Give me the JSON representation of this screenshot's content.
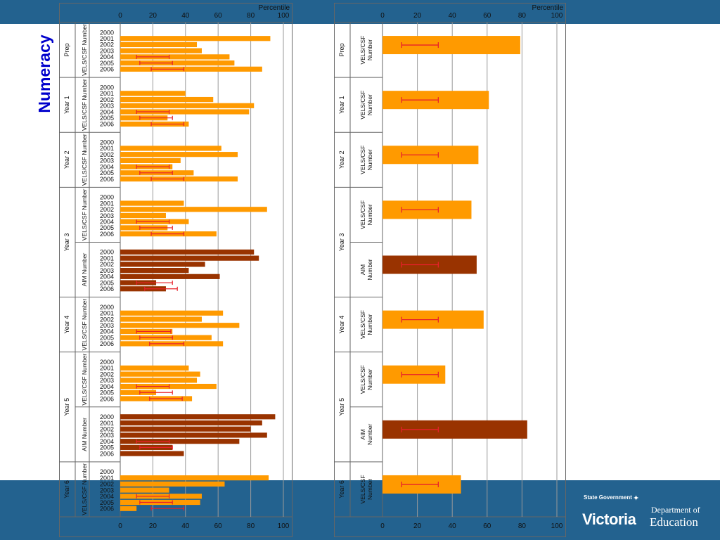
{
  "title": "Numeracy",
  "logo": {
    "state_government": "State Government",
    "victoria": "Victoria",
    "department_of": "Department of",
    "education": "Education"
  },
  "colors": {
    "vels": "#ff9a00",
    "aim": "#993300",
    "error_bar": "#e8202a",
    "band": "#23628f",
    "title": "#0000cc"
  },
  "chart_data": [
    {
      "type": "bar",
      "orientation": "horizontal",
      "xlabel": "Percentile",
      "xlim": [
        0,
        100
      ],
      "xticks": [
        0,
        20,
        40,
        60,
        80,
        100
      ],
      "grid": true,
      "groups": [
        {
          "year": "Prep",
          "measure": "VELS/CSF Number",
          "series": "vels",
          "categories": [
            "2000",
            "2001",
            "2002",
            "2003",
            "2004",
            "2005",
            "2006"
          ],
          "values": [
            null,
            92,
            47,
            50,
            67,
            70,
            87
          ],
          "errors": [
            null,
            null,
            null,
            null,
            [
              10,
              30
            ],
            [
              12,
              32
            ],
            [
              19,
              39
            ]
          ]
        },
        {
          "year": "Year 1",
          "measure": "VELS/CSF Number",
          "series": "vels",
          "categories": [
            "2000",
            "2001",
            "2002",
            "2003",
            "2004",
            "2005",
            "2006"
          ],
          "values": [
            null,
            40,
            57,
            82,
            79,
            29,
            42
          ],
          "errors": [
            null,
            null,
            null,
            null,
            [
              10,
              30
            ],
            [
              12,
              32
            ],
            [
              19,
              39
            ]
          ]
        },
        {
          "year": "Year 2",
          "measure": "VELS/CSF Number",
          "series": "vels",
          "categories": [
            "2000",
            "2001",
            "2002",
            "2003",
            "2004",
            "2005",
            "2006"
          ],
          "values": [
            null,
            62,
            72,
            37,
            32,
            45,
            72
          ],
          "errors": [
            null,
            null,
            null,
            null,
            [
              10,
              30
            ],
            [
              12,
              32
            ],
            [
              19,
              39
            ]
          ]
        },
        {
          "year": "Year 3",
          "measure": "VELS/CSF Number",
          "series": "vels",
          "categories": [
            "2000",
            "2001",
            "2002",
            "2003",
            "2004",
            "2005",
            "2006"
          ],
          "values": [
            null,
            39,
            90,
            28,
            42,
            29,
            59
          ],
          "errors": [
            null,
            null,
            null,
            null,
            [
              10,
              30
            ],
            [
              12,
              32
            ],
            [
              19,
              39
            ]
          ]
        },
        {
          "year": "Year 3",
          "measure": "AIM Number",
          "series": "aim",
          "categories": [
            "2000",
            "2001",
            "2002",
            "2003",
            "2004",
            "2005",
            "2006"
          ],
          "values": [
            82,
            85,
            52,
            42,
            61,
            22,
            28
          ],
          "errors": [
            null,
            null,
            null,
            null,
            null,
            [
              10,
              32
            ],
            [
              15,
              35
            ]
          ]
        },
        {
          "year": "Year 4",
          "measure": "VELS/CSF Number",
          "series": "vels",
          "categories": [
            "2000",
            "2001",
            "2002",
            "2003",
            "2004",
            "2005",
            "2006"
          ],
          "values": [
            null,
            63,
            50,
            73,
            32,
            56,
            63
          ],
          "errors": [
            null,
            null,
            null,
            null,
            [
              10,
              31
            ],
            [
              12,
              32
            ],
            [
              18,
              39
            ]
          ]
        },
        {
          "year": "Year 5",
          "measure": "VELS/CSF Number",
          "series": "vels",
          "categories": [
            "2000",
            "2001",
            "2002",
            "2003",
            "2004",
            "2005",
            "2006"
          ],
          "values": [
            null,
            42,
            49,
            47,
            59,
            22,
            44
          ],
          "errors": [
            null,
            null,
            null,
            null,
            [
              10,
              30
            ],
            [
              12,
              32
            ],
            [
              18,
              38
            ]
          ]
        },
        {
          "year": "Year 5",
          "measure": "AIM Number",
          "series": "aim",
          "categories": [
            "2000",
            "2001",
            "2002",
            "2003",
            "2004",
            "2005",
            "2006"
          ],
          "values": [
            95,
            87,
            80,
            90,
            73,
            32,
            39
          ],
          "errors": [
            null,
            null,
            null,
            null,
            [
              10,
              30
            ],
            [
              12,
              32
            ],
            null
          ]
        },
        {
          "year": "Year 6",
          "measure": "VELS/CSF Number",
          "series": "vels",
          "categories": [
            "2000",
            "2001",
            "2002",
            "2003",
            "2004",
            "2005",
            "2006"
          ],
          "values": [
            null,
            91,
            64,
            30,
            50,
            49,
            10
          ],
          "errors": [
            null,
            null,
            null,
            null,
            [
              10,
              30
            ],
            [
              12,
              32
            ],
            [
              19,
              39
            ]
          ]
        }
      ]
    },
    {
      "type": "bar",
      "orientation": "horizontal",
      "xlabel": "Percentile",
      "xlim": [
        0,
        100
      ],
      "xticks": [
        0,
        20,
        40,
        60,
        80,
        100
      ],
      "grid": true,
      "groups": [
        {
          "year": "Prep",
          "measure": "VELS/CSF Number",
          "series": "vels",
          "value": 79,
          "error": [
            11,
            32
          ]
        },
        {
          "year": "Year 1",
          "measure": "VELS/CSF Number",
          "series": "vels",
          "value": 61,
          "error": [
            11,
            32
          ]
        },
        {
          "year": "Year 2",
          "measure": "VELS/CSF Number",
          "series": "vels",
          "value": 55,
          "error": [
            11,
            32
          ]
        },
        {
          "year": "Year 3",
          "measure": "VELS/CSF Number",
          "series": "vels",
          "value": 51,
          "error": [
            11,
            32
          ]
        },
        {
          "year": "Year 3",
          "measure": "AIM Number",
          "series": "aim",
          "value": 54,
          "error": [
            11,
            32
          ]
        },
        {
          "year": "Year 4",
          "measure": "VELS/CSF Number",
          "series": "vels",
          "value": 58,
          "error": [
            11,
            32
          ]
        },
        {
          "year": "Year 5",
          "measure": "VELS/CSF Number",
          "series": "vels",
          "value": 36,
          "error": [
            11,
            32
          ]
        },
        {
          "year": "Year 5",
          "measure": "AIM Number",
          "series": "aim",
          "value": 83,
          "error": [
            11,
            32
          ]
        },
        {
          "year": "Year 6",
          "measure": "VELS/CSF Number",
          "series": "vels",
          "value": 45,
          "error": [
            11,
            32
          ]
        }
      ]
    }
  ]
}
